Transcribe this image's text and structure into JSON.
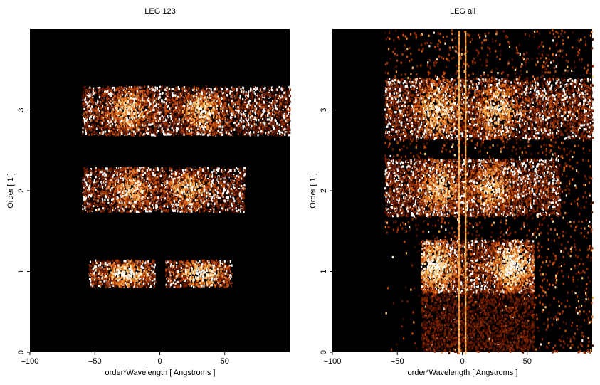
{
  "chart_data": [
    {
      "type": "heatmap",
      "title": "LEG 123",
      "xlabel": "order*Wavelength [ Angstroms ]",
      "ylabel": "Order [ 1 ]",
      "xlim": [
        -100,
        100
      ],
      "ylim": [
        0,
        4
      ],
      "x_ticks": [
        -100,
        -50,
        0,
        50
      ],
      "x_tick_labels": [
        "−100",
        "−50",
        "0",
        "50"
      ],
      "y_ticks": [
        0,
        1,
        2,
        3
      ],
      "y_tick_labels": [
        "0",
        "1",
        "2",
        "3"
      ],
      "colormap": [
        "#000000",
        "#3c0a00",
        "#8a2a00",
        "#d2560f",
        "#f29a3a",
        "#ffd58a",
        "#ffffff"
      ],
      "background": "#000000",
      "grid": false,
      "bands": [
        {
          "order": 1,
          "x_range": [
            -55,
            55
          ],
          "y_range": [
            0.82,
            1.15
          ],
          "blob_centers": [
            -27,
            32
          ],
          "peak": 1.0,
          "gap": [
            -4,
            4
          ]
        },
        {
          "order": 2,
          "x_range": [
            -60,
            65
          ],
          "y_range": [
            1.75,
            2.3
          ],
          "blob_centers": [
            -22,
            22
          ],
          "peak": 0.75
        },
        {
          "order": 3,
          "x_range": [
            -60,
            100
          ],
          "y_range": [
            2.7,
            3.3
          ],
          "blob_centers": [
            -25,
            33
          ],
          "peak": 0.8
        }
      ]
    },
    {
      "type": "heatmap",
      "title": "LEG all",
      "xlabel": "order*Wavelength [ Angstroms ]",
      "ylabel": "Order [ 1 ]",
      "xlim": [
        -100,
        100
      ],
      "ylim": [
        0,
        4
      ],
      "x_ticks": [
        -100,
        -50,
        0,
        50
      ],
      "x_tick_labels": [
        "−100",
        "−50",
        "0",
        "50"
      ],
      "y_ticks": [
        0,
        1,
        2,
        3
      ],
      "y_tick_labels": [
        "0",
        "1",
        "2",
        "3"
      ],
      "colormap": [
        "#000000",
        "#3c0a00",
        "#8a2a00",
        "#d2560f",
        "#f29a3a",
        "#ffd58a",
        "#ffffff"
      ],
      "background": "#000000",
      "grid": false,
      "bands": [
        {
          "order": 1,
          "x_range": [
            -32,
            55
          ],
          "y_range": [
            0.75,
            1.4
          ],
          "blob_centers": [
            -22,
            38
          ],
          "peak": 1.0
        },
        {
          "order": 2,
          "x_range": [
            -60,
            75
          ],
          "y_range": [
            1.7,
            2.4
          ],
          "blob_centers": [
            -18,
            22
          ],
          "peak": 0.8
        },
        {
          "order": 3,
          "x_range": [
            -60,
            100
          ],
          "y_range": [
            2.65,
            3.4
          ],
          "blob_centers": [
            -20,
            26
          ],
          "peak": 0.85
        }
      ],
      "zero_order_line": {
        "x": 0,
        "y_range": [
          0,
          4
        ]
      },
      "diffuse_region": {
        "x_range": [
          -60,
          100
        ],
        "y_range": [
          0,
          4
        ]
      }
    }
  ]
}
